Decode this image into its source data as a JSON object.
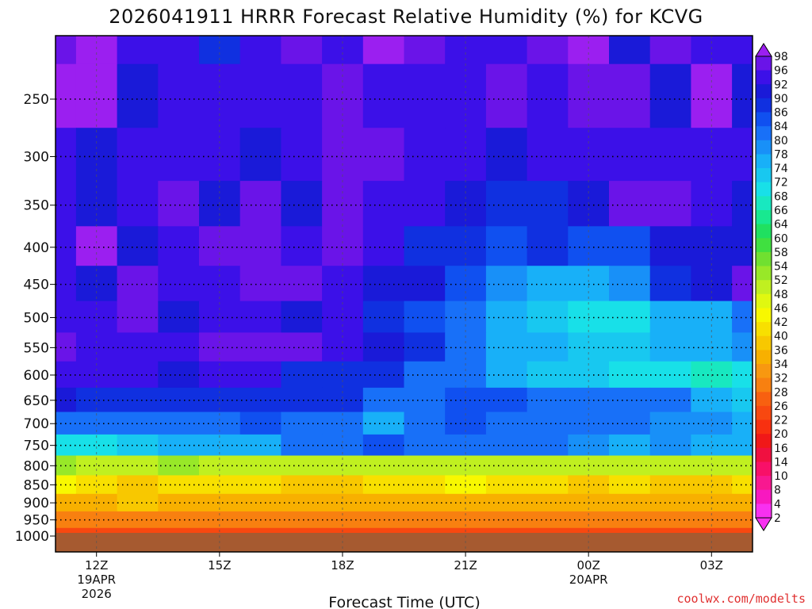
{
  "chart_data": {
    "type": "heatmap",
    "title": "2026041911 HRRR Forecast Relative Humidity (%) for KCVG",
    "xlabel": "Forecast Time (UTC)",
    "ylabel": "",
    "credit": "coolwx.com/modelts",
    "x_hours": [
      11,
      12,
      13,
      14,
      15,
      16,
      17,
      18,
      19,
      20,
      21,
      22,
      23,
      24,
      25,
      26,
      27,
      28
    ],
    "y_levels_hpa": [
      200,
      250,
      300,
      350,
      400,
      450,
      500,
      550,
      600,
      650,
      700,
      750,
      800,
      850,
      900,
      950,
      1000
    ],
    "ylim_hpa": [
      1000,
      200
    ],
    "x_ticks": [
      {
        "hour": 12,
        "label": "12Z",
        "sub1": "19APR",
        "sub2": "2026"
      },
      {
        "hour": 15,
        "label": "15Z",
        "sub1": "",
        "sub2": ""
      },
      {
        "hour": 18,
        "label": "18Z",
        "sub1": "",
        "sub2": ""
      },
      {
        "hour": 21,
        "label": "21Z",
        "sub1": "",
        "sub2": ""
      },
      {
        "hour": 24,
        "label": "00Z",
        "sub1": "20APR",
        "sub2": ""
      },
      {
        "hour": 27,
        "label": "03Z",
        "sub1": "",
        "sub2": ""
      }
    ],
    "y_ticks": [
      250,
      300,
      350,
      400,
      450,
      500,
      550,
      600,
      650,
      700,
      750,
      800,
      850,
      900,
      950,
      1000
    ],
    "grid": true,
    "ground_level_hpa": 990,
    "colorbar": {
      "labels": [
        98,
        96,
        92,
        90,
        86,
        84,
        80,
        78,
        74,
        72,
        68,
        66,
        64,
        60,
        58,
        54,
        52,
        48,
        46,
        42,
        40,
        36,
        34,
        32,
        28,
        26,
        22,
        20,
        16,
        14,
        10,
        8,
        4,
        2
      ],
      "colors": [
        "#9b1ff0",
        "#6a14e8",
        "#3c10e8",
        "#1a1ad8",
        "#1030e0",
        "#1050f0",
        "#1870f8",
        "#1890f8",
        "#18b0f8",
        "#18c8f0",
        "#18e0e8",
        "#18e8c0",
        "#18e890",
        "#20e060",
        "#40e040",
        "#70e030",
        "#98e828",
        "#c0f020",
        "#e0f810",
        "#f8f800",
        "#f8e000",
        "#f8c800",
        "#f8b000",
        "#f89810",
        "#f88010",
        "#f86010",
        "#f84810",
        "#f83010",
        "#f01818",
        "#f01040",
        "#f81068",
        "#f81890",
        "#f818c0",
        "#f830f0"
      ]
    },
    "rh_rows": [
      [
        96,
        98,
        92,
        95,
        87,
        94,
        97,
        95,
        98,
        96,
        95,
        92,
        96,
        98,
        91,
        96,
        94,
        95
      ],
      [
        99,
        98,
        91,
        92,
        95,
        94,
        93,
        97,
        92,
        94,
        93,
        96,
        92,
        97,
        97,
        91,
        99,
        91
      ],
      [
        94,
        90,
        94,
        95,
        94,
        91,
        92,
        96,
        97,
        94,
        94,
        90,
        94,
        92,
        95,
        94,
        92,
        94
      ],
      [
        95,
        91,
        95,
        96,
        91,
        96,
        90,
        97,
        94,
        94,
        90,
        89,
        89,
        90,
        96,
        96,
        94,
        90
      ],
      [
        95,
        99,
        91,
        95,
        96,
        97,
        93,
        97,
        95,
        89,
        89,
        85,
        86,
        84,
        85,
        91,
        91,
        91
      ],
      [
        92,
        90,
        96,
        93,
        95,
        96,
        96,
        92,
        91,
        91,
        84,
        79,
        76,
        75,
        78,
        86,
        90,
        96
      ],
      [
        95,
        93,
        96,
        91,
        94,
        92,
        90,
        95,
        88,
        85,
        81,
        77,
        73,
        70,
        68,
        74,
        76,
        82
      ],
      [
        96,
        94,
        92,
        95,
        96,
        97,
        96,
        94,
        91,
        86,
        81,
        76,
        74,
        73,
        73,
        75,
        77,
        78
      ],
      [
        92,
        93,
        92,
        90,
        93,
        93,
        89,
        88,
        87,
        83,
        80,
        76,
        73,
        72,
        71,
        70,
        67,
        70
      ],
      [
        90,
        88,
        89,
        88,
        89,
        86,
        88,
        88,
        83,
        83,
        84,
        84,
        82,
        81,
        81,
        80,
        75,
        72
      ],
      [
        80,
        80,
        83,
        83,
        82,
        85,
        82,
        80,
        77,
        81,
        85,
        83,
        81,
        82,
        81,
        79,
        78,
        75
      ],
      [
        69,
        69,
        73,
        75,
        74,
        77,
        80,
        83,
        85,
        82,
        80,
        81,
        82,
        79,
        77,
        79,
        77,
        74
      ],
      [
        52,
        50,
        50,
        52,
        49,
        51,
        50,
        50,
        51,
        50,
        49,
        49,
        51,
        49,
        49,
        49,
        48,
        50
      ],
      [
        42,
        41,
        39,
        40,
        40,
        40,
        39,
        39,
        41,
        40,
        42,
        40,
        41,
        39,
        40,
        39,
        39,
        40
      ],
      [
        35,
        35,
        36,
        34,
        34,
        34,
        34,
        35,
        34,
        35,
        35,
        35,
        35,
        34,
        35,
        35,
        34,
        34
      ],
      [
        28,
        29,
        29,
        28,
        28,
        28,
        28,
        28,
        28,
        28,
        28,
        28,
        28,
        29,
        29,
        28,
        28,
        29
      ],
      [
        24,
        23,
        23,
        24,
        24,
        24,
        24,
        24,
        23,
        23,
        23,
        24,
        24,
        23,
        24,
        24,
        23,
        24
      ]
    ]
  }
}
